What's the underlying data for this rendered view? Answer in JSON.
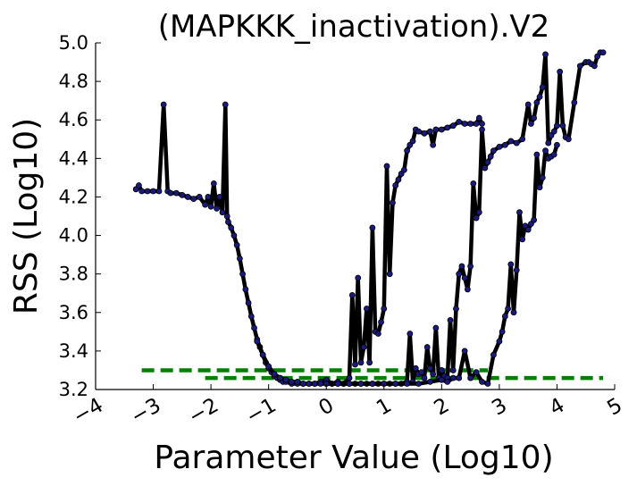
{
  "chart_data": {
    "type": "line",
    "title": "(MAPKKK_inactivation).V2",
    "xlabel": "Parameter Value (Log10)",
    "ylabel": "RSS (Log10)",
    "xlim": [
      -4,
      5
    ],
    "ylim": [
      3.2,
      5.0
    ],
    "x_ticks": [
      -4,
      -3,
      -2,
      -1,
      0,
      1,
      2,
      3,
      4,
      5
    ],
    "x_tick_labels": [
      "−4",
      "−3",
      "−2",
      "−1",
      "0",
      "1",
      "2",
      "3",
      "4",
      "5"
    ],
    "y_ticks": [
      3.2,
      3.4,
      3.6,
      3.8,
      4.0,
      4.2,
      4.4,
      4.6,
      4.8,
      5.0
    ],
    "y_tick_labels": [
      "3.2",
      "3.4",
      "3.6",
      "3.8",
      "4.0",
      "4.2",
      "4.4",
      "4.6",
      "4.8",
      "5.0"
    ],
    "grid": false,
    "colors": {
      "line": "#000000",
      "marker": "#1a1a7a",
      "threshold": "#008000"
    },
    "series": [
      {
        "x": [
          -3.3,
          -3.25,
          -3.2,
          -3.1,
          -3.0,
          -2.9,
          -2.82,
          -2.75,
          -2.7,
          -2.6,
          -2.5,
          -2.4,
          -2.3,
          -2.2,
          -2.1,
          -2.05,
          -2.0,
          -1.95,
          -1.9,
          -1.85,
          -1.8,
          -1.75,
          -1.72,
          -1.7,
          -1.65,
          -1.6,
          -1.55,
          -1.5,
          -1.45,
          -1.4,
          -1.35,
          -1.3,
          -1.25,
          -1.2,
          -1.15,
          -1.1,
          -1.05,
          -1.0,
          -0.95,
          -0.9,
          -0.85,
          -0.8,
          -0.75,
          -0.7,
          -0.6,
          -0.5,
          -0.4,
          -0.3,
          -0.2,
          -0.1,
          0.0,
          0.1,
          0.2,
          0.3,
          0.4,
          0.45,
          0.5,
          0.55,
          0.6,
          0.65,
          0.7,
          0.75,
          0.8,
          0.85,
          0.9,
          0.95,
          1.0,
          1.05,
          1.1,
          1.15,
          1.2,
          1.25,
          1.3,
          1.35,
          1.4,
          1.45,
          1.5,
          1.55,
          1.6,
          1.7,
          1.8,
          1.85,
          1.9,
          2.0,
          2.1,
          2.2,
          2.3,
          2.4,
          2.5,
          2.6,
          2.65,
          2.7
        ],
        "y": [
          4.24,
          4.26,
          4.23,
          4.23,
          4.23,
          4.23,
          4.68,
          4.23,
          4.22,
          4.22,
          4.21,
          4.2,
          4.19,
          4.2,
          4.16,
          4.2,
          4.15,
          4.27,
          4.14,
          4.2,
          4.12,
          4.68,
          4.1,
          4.07,
          4.04,
          4.0,
          3.95,
          3.88,
          3.8,
          3.72,
          3.65,
          3.58,
          3.52,
          3.46,
          3.42,
          3.38,
          3.34,
          3.31,
          3.29,
          3.27,
          3.26,
          3.25,
          3.24,
          3.24,
          3.23,
          3.23,
          3.23,
          3.23,
          3.23,
          3.24,
          3.25,
          3.23,
          3.24,
          3.23,
          3.26,
          3.69,
          3.33,
          3.78,
          3.34,
          3.42,
          3.62,
          3.34,
          4.04,
          3.5,
          3.49,
          3.55,
          3.62,
          4.36,
          3.8,
          4.17,
          4.26,
          4.29,
          4.32,
          4.34,
          4.44,
          4.47,
          4.49,
          4.55,
          4.54,
          4.53,
          4.54,
          4.47,
          4.55,
          4.55,
          4.56,
          4.57,
          4.59,
          4.58,
          4.58,
          4.58,
          4.61,
          4.58
        ]
      },
      {
        "x": [
          -1.2,
          -1.1,
          -1.0,
          -0.9,
          -0.8,
          -0.7,
          -0.6,
          -0.5,
          -0.4,
          -0.3,
          -0.2,
          -0.1,
          0.0,
          0.1,
          0.2,
          0.3,
          0.4,
          0.5,
          0.6,
          0.7,
          0.8,
          0.9,
          1.0,
          1.1,
          1.2,
          1.3,
          1.4,
          1.45,
          1.5,
          1.55,
          1.6,
          1.65,
          1.7,
          1.75,
          1.8,
          1.85,
          1.9,
          1.95,
          2.0,
          2.05,
          2.1,
          2.15,
          2.2,
          2.25,
          2.3,
          2.35,
          2.4,
          2.45,
          2.5,
          2.55,
          2.6,
          2.65,
          2.7,
          2.75,
          2.8,
          2.85,
          2.9,
          3.0,
          3.1,
          3.2,
          3.3,
          3.4,
          3.5,
          3.55,
          3.6,
          3.65,
          3.7,
          3.75,
          3.8,
          3.85,
          3.9,
          3.95,
          4.0,
          4.05,
          4.1,
          4.15,
          4.2,
          4.3,
          4.4,
          4.5,
          4.55,
          4.6,
          4.65,
          4.7,
          4.75,
          4.8
        ],
        "y": [
          3.45,
          3.38,
          3.32,
          3.28,
          3.26,
          3.25,
          3.24,
          3.24,
          3.23,
          3.23,
          3.23,
          3.23,
          3.23,
          3.23,
          3.23,
          3.23,
          3.23,
          3.23,
          3.23,
          3.23,
          3.23,
          3.23,
          3.23,
          3.23,
          3.23,
          3.23,
          3.24,
          3.49,
          3.24,
          3.31,
          3.28,
          3.29,
          3.26,
          3.42,
          3.31,
          3.28,
          3.52,
          3.26,
          3.3,
          3.27,
          3.26,
          3.56,
          3.3,
          3.62,
          3.8,
          3.84,
          3.78,
          3.72,
          3.84,
          4.27,
          4.09,
          4.12,
          4.55,
          4.35,
          4.38,
          4.41,
          4.44,
          4.46,
          4.47,
          4.49,
          4.48,
          4.5,
          4.68,
          4.58,
          4.61,
          4.69,
          4.72,
          4.77,
          4.94,
          4.48,
          4.52,
          4.54,
          4.57,
          4.85,
          4.57,
          4.51,
          4.5,
          4.69,
          4.88,
          4.9,
          4.9,
          4.89,
          4.88,
          4.93,
          4.95,
          4.95
        ]
      },
      {
        "x": [
          0.0,
          0.2,
          0.4,
          0.6,
          0.8,
          1.0,
          1.2,
          1.4,
          1.6,
          1.8,
          2.0,
          2.1,
          2.2,
          2.3,
          2.4,
          2.5,
          2.6,
          2.7,
          2.8,
          2.9,
          3.0,
          3.05,
          3.1,
          3.15,
          3.2,
          3.25,
          3.3,
          3.35,
          3.4,
          3.45,
          3.5,
          3.55,
          3.6,
          3.65,
          3.7,
          3.75,
          3.8,
          3.85,
          3.9,
          3.95,
          4.0
        ],
        "y": [
          3.23,
          3.23,
          3.23,
          3.23,
          3.23,
          3.23,
          3.23,
          3.23,
          3.23,
          3.24,
          3.25,
          3.24,
          3.26,
          3.26,
          3.4,
          3.26,
          3.29,
          3.24,
          3.23,
          3.38,
          3.45,
          3.5,
          3.58,
          3.62,
          3.85,
          3.6,
          3.82,
          4.12,
          3.98,
          4.05,
          4.03,
          4.06,
          4.08,
          4.42,
          4.25,
          4.3,
          4.44,
          4.4,
          4.41,
          4.42,
          4.47
        ]
      }
    ],
    "threshold_lines": [
      {
        "x": [
          -3.2,
          2.8
        ],
        "y": [
          3.3,
          3.3
        ],
        "style": "dashed"
      },
      {
        "x": [
          -2.1,
          4.8
        ],
        "y": [
          3.26,
          3.26
        ],
        "style": "dashed"
      }
    ]
  }
}
